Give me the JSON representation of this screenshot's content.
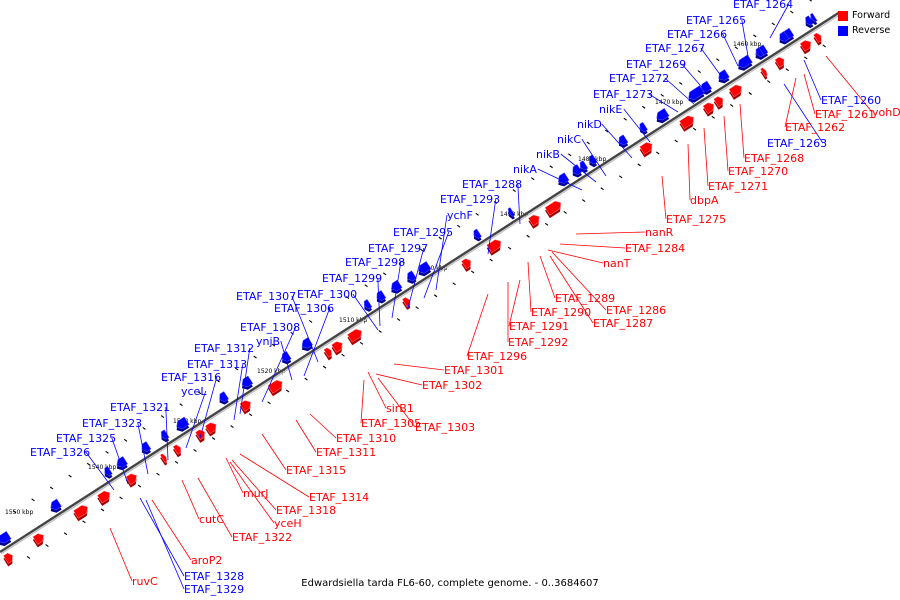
{
  "caption": "Edwardsiella tarda FL6-60, complete genome. - 0..3684607",
  "legend": [
    {
      "label": "Forward",
      "color": "#ff0000"
    },
    {
      "label": "Reverse",
      "color": "#0000ff"
    }
  ],
  "colors": {
    "forward": "#ff0000",
    "reverse": "#0000ff",
    "backbone": "#444444"
  },
  "ticks": [
    "1460 kbp",
    "1470 kbp",
    "1480 kbp",
    "1490 kbp",
    "1500 kbp",
    "1510 kbp",
    "1520 kbp",
    "1530 kbp",
    "1540 kbp",
    "1550 kbp"
  ],
  "reverse_labels": [
    "ETAF_1264",
    "ETAF_1265",
    "ETAF_1266",
    "ETAF_1267",
    "ETAF_1269",
    "ETAF_1272",
    "ETAF_1273",
    "nikE",
    "nikD",
    "nikC",
    "nikB",
    "nikA",
    "ETAF_1288",
    "ETAF_1293",
    "ychF",
    "ETAF_1295",
    "ETAF_1297",
    "ETAF_1298",
    "ETAF_1299",
    "ETAF_1307",
    "ETAF_1300",
    "ETAF_1306",
    "ETAF_1308",
    "ynjB",
    "ETAF_1312",
    "ETAF_1313",
    "ETAF_1316",
    "yceL",
    "ETAF_1321",
    "ETAF_1323",
    "ETAF_1325",
    "ETAF_1326",
    "ETAF_1260",
    "ETAF_1263",
    "ETAF_1328",
    "ETAF_1329"
  ],
  "forward_labels": [
    "yohD",
    "ETAF_1261",
    "ETAF_1262",
    "ETAF_1268",
    "ETAF_1270",
    "ETAF_1271",
    "dbpA",
    "ETAF_1275",
    "nanR",
    "ETAF_1284",
    "nanT",
    "ETAF_1289",
    "ETAF_1286",
    "ETAF_1290",
    "ETAF_1287",
    "ETAF_1291",
    "ETAF_1292",
    "ETAF_1296",
    "ETAF_1301",
    "ETAF_1302",
    "sirB1",
    "ETAF_1305",
    "ETAF_1303",
    "ETAF_1310",
    "ETAF_1311",
    "ETAF_1315",
    "ETAF_1314",
    "murJ",
    "ETAF_1318",
    "yceH",
    "cutC",
    "ETAF_1322",
    "aroP2",
    "ruvC"
  ]
}
